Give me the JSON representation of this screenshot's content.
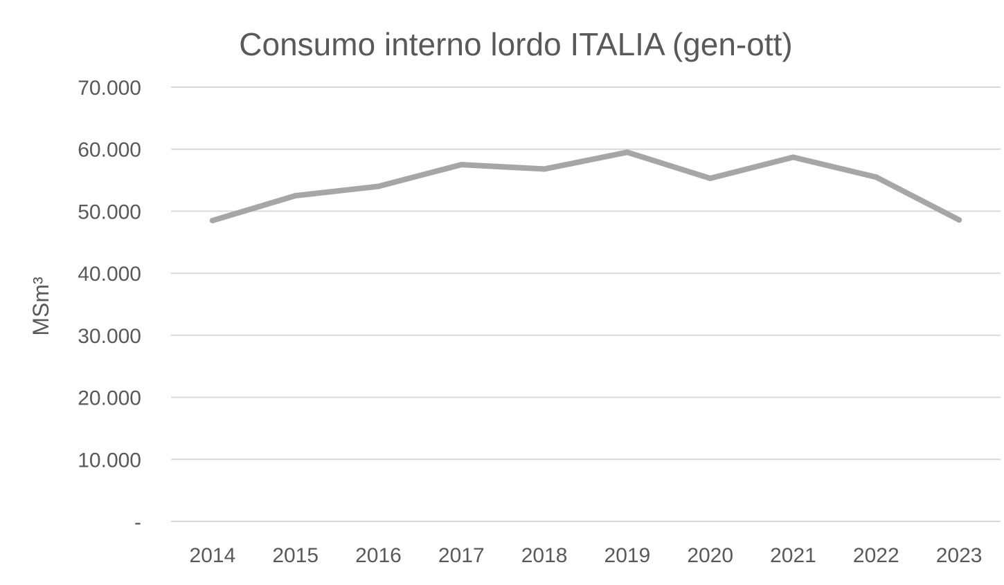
{
  "chart_data": {
    "type": "line",
    "title": "Consumo interno lordo ITALIA (gen-ott)",
    "xlabel": "",
    "ylabel": "MSm³",
    "categories": [
      "2014",
      "2015",
      "2016",
      "2017",
      "2018",
      "2019",
      "2020",
      "2021",
      "2022",
      "2023"
    ],
    "series": [
      {
        "values": [
          48500,
          52500,
          54000,
          57500,
          56800,
          59500,
          55300,
          58700,
          55500,
          48600
        ],
        "color": "#a6a6a6"
      }
    ],
    "ylim": [
      0,
      70000
    ],
    "yticks": [
      {
        "value": 0,
        "label": "-"
      },
      {
        "value": 10000,
        "label": "10.000"
      },
      {
        "value": 20000,
        "label": "20.000"
      },
      {
        "value": 30000,
        "label": "30.000"
      },
      {
        "value": 40000,
        "label": "40.000"
      },
      {
        "value": 50000,
        "label": "50.000"
      },
      {
        "value": 60000,
        "label": "60.000"
      },
      {
        "value": 70000,
        "label": "70.000"
      }
    ],
    "grid": true,
    "legend": "none"
  }
}
